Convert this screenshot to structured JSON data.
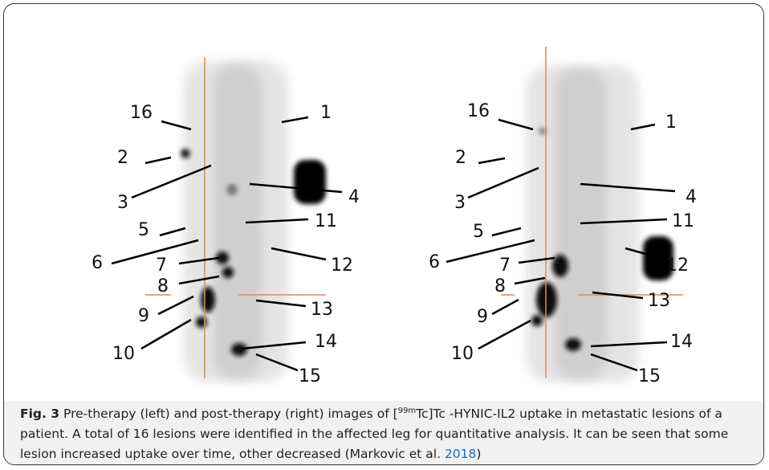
{
  "figure": {
    "panels": [
      {
        "labels": [
          "1",
          "2",
          "3",
          "4",
          "5",
          "6",
          "7",
          "8",
          "9",
          "10",
          "11",
          "12",
          "13",
          "14",
          "15",
          "16"
        ]
      },
      {
        "labels": [
          "1",
          "2",
          "3",
          "4",
          "5",
          "6",
          "7",
          "8",
          "9",
          "10",
          "11",
          "12",
          "13",
          "14",
          "15",
          "16"
        ]
      }
    ],
    "caption": {
      "label": "Fig. 3",
      "text_before": "Pre-therapy (left) and post-therapy (right) images of [",
      "superscript": "99m",
      "text_after": "Tc]Tc -HYNIC-IL2 uptake in metastatic lesions of a patient. A total of 16 lesions were identified in the affected leg for quantitative analysis. It can be seen that some lesion increased uptake over time, other decreased (Markovic et al. ",
      "citation": "2018",
      "closing": ")"
    }
  }
}
